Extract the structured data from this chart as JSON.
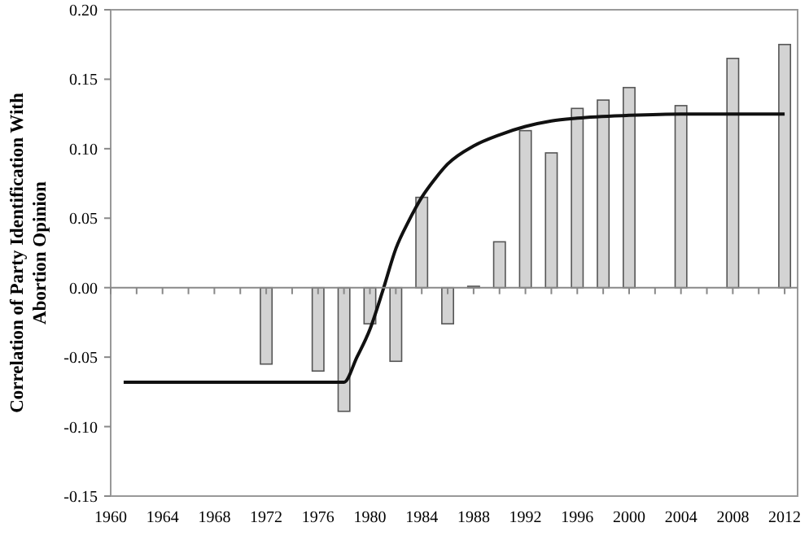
{
  "chart_data": {
    "type": "bar",
    "ylabel": "Correlation of Party Identification With\nAbortion Opinion",
    "xlim": [
      1960,
      2013
    ],
    "xticks": [
      {
        "value": 1960,
        "label": "1960"
      },
      {
        "value": 1962,
        "label": null
      },
      {
        "value": 1964,
        "label": "1964"
      },
      {
        "value": 1966,
        "label": null
      },
      {
        "value": 1968,
        "label": "1968"
      },
      {
        "value": 1970,
        "label": null
      },
      {
        "value": 1972,
        "label": "1972"
      },
      {
        "value": 1974,
        "label": null
      },
      {
        "value": 1976,
        "label": "1976"
      },
      {
        "value": 1978,
        "label": null
      },
      {
        "value": 1980,
        "label": "1980"
      },
      {
        "value": 1982,
        "label": null
      },
      {
        "value": 1984,
        "label": "1984"
      },
      {
        "value": 1986,
        "label": null
      },
      {
        "value": 1988,
        "label": "1988"
      },
      {
        "value": 1990,
        "label": null
      },
      {
        "value": 1992,
        "label": "1992"
      },
      {
        "value": 1994,
        "label": null
      },
      {
        "value": 1996,
        "label": "1996"
      },
      {
        "value": 1998,
        "label": null
      },
      {
        "value": 2000,
        "label": "2000"
      },
      {
        "value": 2002,
        "label": null
      },
      {
        "value": 2004,
        "label": "2004"
      },
      {
        "value": 2006,
        "label": null
      },
      {
        "value": 2008,
        "label": "2008"
      },
      {
        "value": 2010,
        "label": null
      },
      {
        "value": 2012,
        "label": "2012"
      }
    ],
    "ylim": [
      -0.15,
      0.2
    ],
    "yticks": [
      {
        "value": -0.15,
        "label": "-0.15"
      },
      {
        "value": -0.1,
        "label": "-0.10"
      },
      {
        "value": -0.05,
        "label": "-0.05"
      },
      {
        "value": 0,
        "label": "0.00"
      },
      {
        "value": 0.05,
        "label": "0.05"
      },
      {
        "value": 0.1,
        "label": "0.10"
      },
      {
        "value": 0.15,
        "label": "0.15"
      },
      {
        "value": 0.2,
        "label": "0.20"
      }
    ],
    "series": [
      {
        "color": "#d3d3d3",
        "x": [
          1972,
          1976,
          1978,
          1980,
          1982,
          1984,
          1986,
          1988,
          1990,
          1992,
          1994,
          1996,
          1998,
          2000,
          2004,
          2008,
          2012
        ],
        "values": [
          -0.055,
          -0.06,
          -0.089,
          -0.026,
          -0.053,
          0.065,
          -0.026,
          0.001,
          0.033,
          0.113,
          0.097,
          0.129,
          0.135,
          0.144,
          0.131,
          0.165,
          0.175
        ]
      },
      {
        "type": "line",
        "color": "#111111",
        "x": [
          1961,
          1978,
          1979,
          1980,
          1981,
          1982,
          1983,
          1984,
          1985,
          1986,
          1988,
          1990,
          1992,
          1994,
          1996,
          2000,
          2004,
          2008,
          2012
        ],
        "values": [
          -0.068,
          -0.068,
          -0.05,
          -0.03,
          -0.002,
          0.028,
          0.048,
          0.065,
          0.078,
          0.089,
          0.102,
          0.11,
          0.116,
          0.12,
          0.122,
          0.124,
          0.125,
          0.125,
          0.125
        ]
      }
    ]
  }
}
